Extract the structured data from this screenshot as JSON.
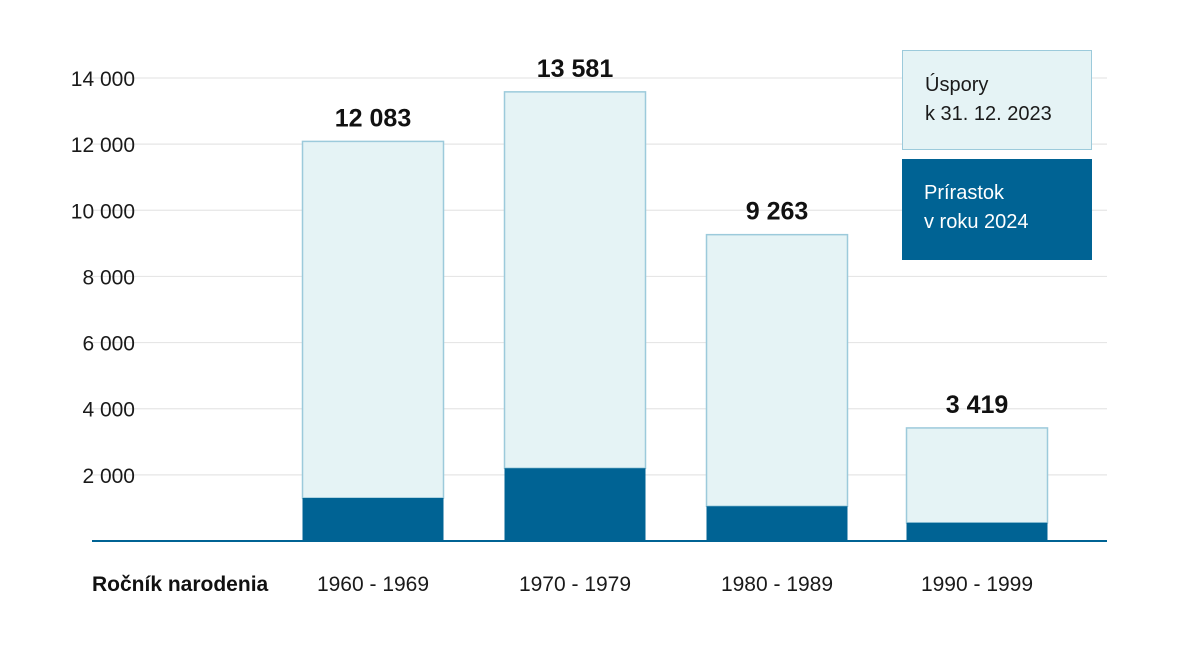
{
  "chart_data": {
    "type": "bar",
    "stacked": true,
    "xlabel": "Ročník narodenia",
    "categories": [
      "1960 - 1969",
      "1970 - 1979",
      "1980 - 1989",
      "1990 - 1999"
    ],
    "totals": [
      12083,
      13581,
      9263,
      3419
    ],
    "total_labels": [
      "12 083",
      "13 581",
      "9 263",
      "3 419"
    ],
    "series": [
      {
        "name": "Prírastok v roku 2024",
        "values": [
          1300,
          2200,
          1050,
          550
        ],
        "color": "#006394"
      },
      {
        "name": "Úspory k 31. 12. 2023",
        "values": [
          10783,
          11381,
          8213,
          2869
        ],
        "color": "#e5f3f5"
      }
    ],
    "ylim": [
      0,
      14000
    ],
    "yticks": [
      2000,
      4000,
      6000,
      8000,
      10000,
      12000,
      14000
    ],
    "ytick_labels": [
      "2 000",
      "4 000",
      "6 000",
      "8 000",
      "10 000",
      "12 000",
      "14 000"
    ],
    "grid": true,
    "legend_position": "top-right",
    "legend": {
      "savings": {
        "line1": "Úspory",
        "line2": "k 31. 12. 2023"
      },
      "increase": {
        "line1": "Prírastok",
        "line2": "v roku 2024"
      }
    },
    "colors": {
      "increase": "#006394",
      "savings_fill": "#e5f3f5",
      "savings_border": "#9ccadb",
      "grid": "#e6e6e6",
      "axis": "#006394"
    }
  }
}
